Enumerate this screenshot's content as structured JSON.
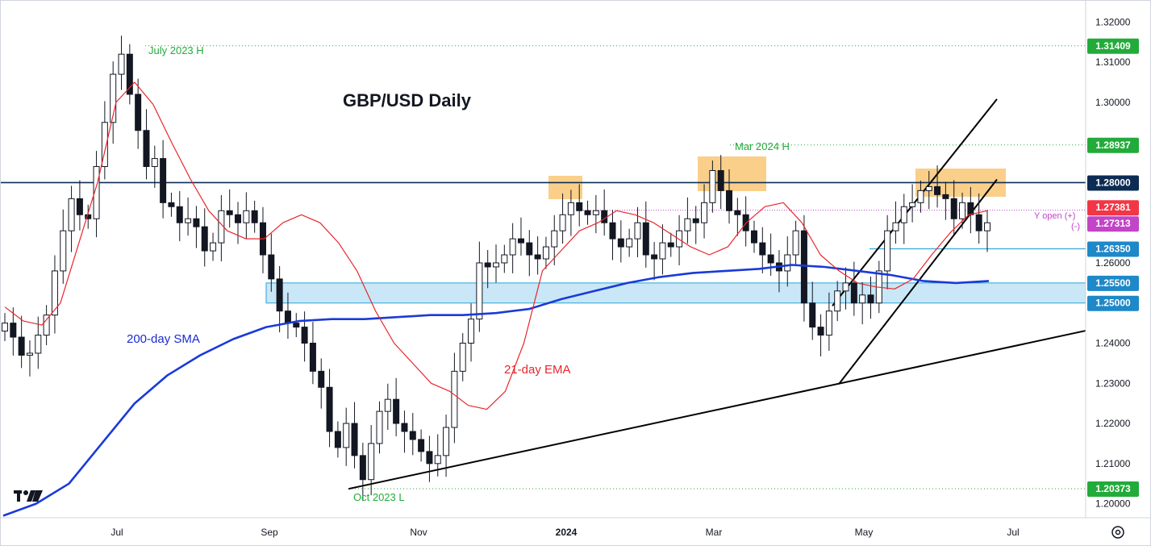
{
  "chart_data": {
    "type": "candlestick",
    "title": "GBP/USD Daily",
    "x_ticks": [
      "Jul",
      "Sep",
      "Nov",
      "2024",
      "Mar",
      "May",
      "Jul"
    ],
    "y_ticks": [
      "1.32000",
      "1.31000",
      "1.30000",
      "1.29000",
      "1.28000",
      "1.27000",
      "1.26000",
      "1.25000",
      "1.24000",
      "1.23000",
      "1.22000",
      "1.21000",
      "1.20000"
    ],
    "ylim": [
      1.1965,
      1.3255
    ],
    "price_tags": [
      {
        "label": "1.31409",
        "value": 1.31409,
        "color": "#22ab3a"
      },
      {
        "label": "1.28937",
        "value": 1.28937,
        "color": "#22ab3a"
      },
      {
        "label": "1.28000",
        "value": 1.28,
        "color": "#0d2c54"
      },
      {
        "label": "1.27381",
        "value": 1.27381,
        "color": "#f23645"
      },
      {
        "label": "1.27313",
        "value": 1.27313,
        "color": "#c245c7"
      },
      {
        "label": "1.26350",
        "value": 1.2635,
        "color": "#1e88c8"
      },
      {
        "label": "1.25500",
        "value": 1.255,
        "color": "#1e88c8"
      },
      {
        "label": "1.25000",
        "value": 1.25,
        "color": "#1e88c8"
      },
      {
        "label": "1.20373",
        "value": 1.20373,
        "color": "#22ab3a"
      }
    ],
    "annotations": [
      {
        "text": "July 2023 H",
        "color": "#22ab3a"
      },
      {
        "text": "Mar 2024 H",
        "color": "#22ab3a"
      },
      {
        "text": "Oct 2023 L",
        "color": "#22ab3a"
      },
      {
        "text": "200-day SMA",
        "color": "#1a2bd1"
      },
      {
        "text": "21-day EMA",
        "color": "#e8262c"
      },
      {
        "text": "Y open (+)",
        "color": "#c245c7"
      },
      {
        "text": "(-)",
        "color": "#c245c7"
      }
    ],
    "horizontal_levels": {
      "resistance": 1.28,
      "july_high": 1.31409,
      "mar_high": 1.28937,
      "oct_low": 1.20373,
      "support_1": 1.2635,
      "year_open": 1.27313
    },
    "support_zone": [
      1.25,
      1.255
    ],
    "ema21_values": [
      1.249,
      1.2455,
      1.2445,
      1.25,
      1.265,
      1.28,
      1.3,
      1.305,
      1.2995,
      1.29,
      1.281,
      1.273,
      1.268,
      1.266,
      1.266,
      1.27,
      1.272,
      1.27,
      1.265,
      1.258,
      1.248,
      1.24,
      1.235,
      1.23,
      1.228,
      1.2245,
      1.2235,
      1.228,
      1.24,
      1.258,
      1.263,
      1.268,
      1.27,
      1.273,
      1.272,
      1.27,
      1.267,
      1.264,
      1.262,
      1.264,
      1.27,
      1.274,
      1.275,
      1.27,
      1.262,
      1.258,
      1.255,
      1.254,
      1.2535,
      1.256,
      1.262,
      1.2675,
      1.272,
      1.273
    ],
    "sma200_values": [
      1.197,
      1.2,
      1.205,
      1.215,
      1.225,
      1.232,
      1.237,
      1.241,
      1.244,
      1.2455,
      1.246,
      1.246,
      1.2465,
      1.247,
      1.247,
      1.2475,
      1.2485,
      1.251,
      1.253,
      1.255,
      1.2565,
      1.2575,
      1.258,
      1.2585,
      1.2595,
      1.259,
      1.258,
      1.257,
      1.2555,
      1.255,
      1.2555
    ],
    "candles_close": [
      1.245,
      1.2415,
      1.237,
      1.2375,
      1.242,
      1.247,
      1.258,
      1.268,
      1.276,
      1.272,
      1.271,
      1.284,
      1.295,
      1.307,
      1.312,
      1.302,
      1.293,
      1.284,
      1.286,
      1.275,
      1.274,
      1.27,
      1.271,
      1.269,
      1.263,
      1.265,
      1.273,
      1.272,
      1.27,
      1.273,
      1.27,
      1.262,
      1.256,
      1.248,
      1.245,
      1.244,
      1.24,
      1.233,
      1.229,
      1.218,
      1.214,
      1.22,
      1.212,
      1.206,
      1.215,
      1.223,
      1.226,
      1.22,
      1.218,
      1.216,
      1.213,
      1.21,
      1.212,
      1.219,
      1.233,
      1.24,
      1.246,
      1.26,
      1.259,
      1.26,
      1.262,
      1.266,
      1.265,
      1.262,
      1.261,
      1.264,
      1.268,
      1.272,
      1.275,
      1.273,
      1.272,
      1.273,
      1.27,
      1.266,
      1.264,
      1.266,
      1.27,
      1.262,
      1.261,
      1.265,
      1.264,
      1.268,
      1.271,
      1.27,
      1.275,
      1.283,
      1.278,
      1.273,
      1.272,
      1.268,
      1.265,
      1.262,
      1.26,
      1.258,
      1.262,
      1.268,
      1.25,
      1.244,
      1.242,
      1.248,
      1.253,
      1.255,
      1.25,
      1.252,
      1.25,
      1.258,
      1.268,
      1.27,
      1.274,
      1.275,
      1.278,
      1.279,
      1.277,
      1.276,
      1.271,
      1.275,
      1.272,
      1.268,
      1.27
    ]
  }
}
